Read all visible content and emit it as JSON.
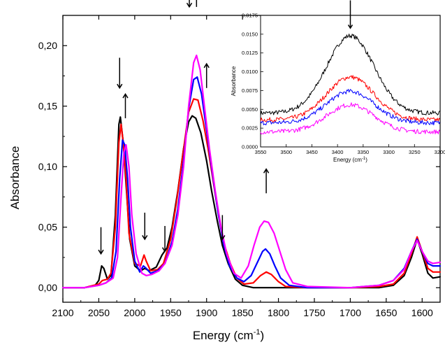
{
  "chart_data": [
    {
      "type": "line",
      "xlabel": "Energy (cm",
      "xlabel_sup": "-1",
      "xlabel_close": ")",
      "ylabel": "Absorbance",
      "xlim": [
        2100,
        1575
      ],
      "ylim": [
        -0.012,
        0.225
      ],
      "x_reversed": true,
      "xticks": [
        2100,
        2050,
        2000,
        1950,
        1900,
        1850,
        1800,
        1750,
        1700,
        1650,
        1600
      ],
      "yticks": [
        0.0,
        0.05,
        0.1,
        0.15,
        0.2
      ],
      "ytick_labels": [
        "0,00",
        "0,05",
        "0,10",
        "0,15",
        "0,20"
      ],
      "grid": false,
      "series": [
        {
          "color": "#000000",
          "points": [
            [
              2100,
              0
            ],
            [
              2070,
              0
            ],
            [
              2055,
              0.002
            ],
            [
              2050,
              0.006
            ],
            [
              2046,
              0.018
            ],
            [
              2043,
              0.016
            ],
            [
              2038,
              0.007
            ],
            [
              2033,
              0.01
            ],
            [
              2027,
              0.06
            ],
            [
              2022,
              0.135
            ],
            [
              2020,
              0.141
            ],
            [
              2016,
              0.12
            ],
            [
              2012,
              0.085
            ],
            [
              2007,
              0.04
            ],
            [
              2000,
              0.018
            ],
            [
              1992,
              0.014
            ],
            [
              1986,
              0.016
            ],
            [
              1980,
              0.014
            ],
            [
              1970,
              0.017
            ],
            [
              1962,
              0.027
            ],
            [
              1955,
              0.033
            ],
            [
              1948,
              0.05
            ],
            [
              1940,
              0.08
            ],
            [
              1932,
              0.115
            ],
            [
              1925,
              0.137
            ],
            [
              1920,
              0.142
            ],
            [
              1915,
              0.14
            ],
            [
              1908,
              0.128
            ],
            [
              1900,
              0.105
            ],
            [
              1893,
              0.08
            ],
            [
              1885,
              0.055
            ],
            [
              1878,
              0.035
            ],
            [
              1870,
              0.02
            ],
            [
              1860,
              0.007
            ],
            [
              1850,
              0.002
            ],
            [
              1835,
              0
            ],
            [
              1800,
              0
            ],
            [
              1700,
              0
            ],
            [
              1660,
              0
            ],
            [
              1640,
              0.002
            ],
            [
              1625,
              0.01
            ],
            [
              1615,
              0.025
            ],
            [
              1607,
              0.04
            ],
            [
              1600,
              0.028
            ],
            [
              1592,
              0.012
            ],
            [
              1585,
              0.008
            ],
            [
              1575,
              0.009
            ]
          ]
        },
        {
          "color": "#ff0000",
          "points": [
            [
              2100,
              0
            ],
            [
              2070,
              0
            ],
            [
              2050,
              0.003
            ],
            [
              2045,
              0.006
            ],
            [
              2038,
              0.007
            ],
            [
              2033,
              0.012
            ],
            [
              2027,
              0.05
            ],
            [
              2022,
              0.12
            ],
            [
              2019,
              0.135
            ],
            [
              2016,
              0.12
            ],
            [
              2012,
              0.09
            ],
            [
              2008,
              0.045
            ],
            [
              2000,
              0.02
            ],
            [
              1992,
              0.018
            ],
            [
              1987,
              0.027
            ],
            [
              1984,
              0.022
            ],
            [
              1978,
              0.014
            ],
            [
              1968,
              0.015
            ],
            [
              1960,
              0.02
            ],
            [
              1950,
              0.04
            ],
            [
              1942,
              0.07
            ],
            [
              1933,
              0.11
            ],
            [
              1925,
              0.145
            ],
            [
              1918,
              0.156
            ],
            [
              1912,
              0.155
            ],
            [
              1905,
              0.138
            ],
            [
              1898,
              0.115
            ],
            [
              1890,
              0.085
            ],
            [
              1882,
              0.055
            ],
            [
              1875,
              0.035
            ],
            [
              1867,
              0.02
            ],
            [
              1858,
              0.008
            ],
            [
              1848,
              0.003
            ],
            [
              1835,
              0.004
            ],
            [
              1825,
              0.01
            ],
            [
              1817,
              0.013
            ],
            [
              1810,
              0.011
            ],
            [
              1800,
              0.005
            ],
            [
              1790,
              0.001
            ],
            [
              1760,
              0
            ],
            [
              1700,
              0
            ],
            [
              1660,
              0.001
            ],
            [
              1640,
              0.003
            ],
            [
              1625,
              0.012
            ],
            [
              1615,
              0.028
            ],
            [
              1607,
              0.042
            ],
            [
              1600,
              0.03
            ],
            [
              1592,
              0.016
            ],
            [
              1585,
              0.013
            ],
            [
              1575,
              0.013
            ]
          ]
        },
        {
          "color": "#0000ff",
          "points": [
            [
              2100,
              0
            ],
            [
              2070,
              0
            ],
            [
              2050,
              0.002
            ],
            [
              2040,
              0.004
            ],
            [
              2032,
              0.008
            ],
            [
              2026,
              0.03
            ],
            [
              2021,
              0.09
            ],
            [
              2017,
              0.122
            ],
            [
              2014,
              0.118
            ],
            [
              2010,
              0.09
            ],
            [
              2006,
              0.05
            ],
            [
              2000,
              0.022
            ],
            [
              1993,
              0.013
            ],
            [
              1988,
              0.018
            ],
            [
              1984,
              0.016
            ],
            [
              1978,
              0.012
            ],
            [
              1968,
              0.014
            ],
            [
              1958,
              0.02
            ],
            [
              1948,
              0.038
            ],
            [
              1940,
              0.065
            ],
            [
              1932,
              0.105
            ],
            [
              1925,
              0.148
            ],
            [
              1918,
              0.172
            ],
            [
              1913,
              0.174
            ],
            [
              1907,
              0.16
            ],
            [
              1900,
              0.13
            ],
            [
              1892,
              0.095
            ],
            [
              1884,
              0.062
            ],
            [
              1876,
              0.035
            ],
            [
              1868,
              0.018
            ],
            [
              1858,
              0.008
            ],
            [
              1848,
              0.005
            ],
            [
              1838,
              0.01
            ],
            [
              1830,
              0.02
            ],
            [
              1822,
              0.03
            ],
            [
              1818,
              0.032
            ],
            [
              1812,
              0.028
            ],
            [
              1805,
              0.018
            ],
            [
              1797,
              0.008
            ],
            [
              1785,
              0.002
            ],
            [
              1760,
              0
            ],
            [
              1700,
              0
            ],
            [
              1660,
              0.002
            ],
            [
              1640,
              0.006
            ],
            [
              1625,
              0.016
            ],
            [
              1615,
              0.03
            ],
            [
              1607,
              0.04
            ],
            [
              1600,
              0.03
            ],
            [
              1592,
              0.02
            ],
            [
              1585,
              0.018
            ],
            [
              1575,
              0.018
            ]
          ]
        },
        {
          "color": "#ff00ff",
          "points": [
            [
              2100,
              0
            ],
            [
              2070,
              0
            ],
            [
              2050,
              0.002
            ],
            [
              2040,
              0.004
            ],
            [
              2030,
              0.008
            ],
            [
              2024,
              0.025
            ],
            [
              2019,
              0.075
            ],
            [
              2015,
              0.112
            ],
            [
              2012,
              0.118
            ],
            [
              2008,
              0.1
            ],
            [
              2004,
              0.06
            ],
            [
              1998,
              0.028
            ],
            [
              1990,
              0.012
            ],
            [
              1984,
              0.01
            ],
            [
              1976,
              0.011
            ],
            [
              1966,
              0.014
            ],
            [
              1958,
              0.02
            ],
            [
              1948,
              0.035
            ],
            [
              1940,
              0.06
            ],
            [
              1932,
              0.1
            ],
            [
              1925,
              0.15
            ],
            [
              1918,
              0.186
            ],
            [
              1914,
              0.192
            ],
            [
              1909,
              0.18
            ],
            [
              1903,
              0.15
            ],
            [
              1896,
              0.115
            ],
            [
              1888,
              0.08
            ],
            [
              1880,
              0.05
            ],
            [
              1872,
              0.028
            ],
            [
              1862,
              0.012
            ],
            [
              1852,
              0.008
            ],
            [
              1842,
              0.018
            ],
            [
              1834,
              0.035
            ],
            [
              1826,
              0.05
            ],
            [
              1820,
              0.055
            ],
            [
              1814,
              0.054
            ],
            [
              1806,
              0.045
            ],
            [
              1798,
              0.03
            ],
            [
              1790,
              0.015
            ],
            [
              1780,
              0.004
            ],
            [
              1760,
              0.001
            ],
            [
              1700,
              0
            ],
            [
              1660,
              0.002
            ],
            [
              1640,
              0.006
            ],
            [
              1625,
              0.015
            ],
            [
              1615,
              0.03
            ],
            [
              1607,
              0.039
            ],
            [
              1600,
              0.03
            ],
            [
              1592,
              0.022
            ],
            [
              1585,
              0.02
            ],
            [
              1575,
              0.021
            ]
          ]
        }
      ],
      "annotations": [
        {
          "direction": "down",
          "x": 2047,
          "y_from": 0.05,
          "y_to": 0.028
        },
        {
          "direction": "down",
          "x": 2021,
          "y_from": 0.19,
          "y_to": 0.165
        },
        {
          "direction": "up",
          "x": 2013,
          "y_from": 0.14,
          "y_to": 0.16
        },
        {
          "direction": "down",
          "x": 1986,
          "y_from": 0.062,
          "y_to": 0.04
        },
        {
          "direction": "down",
          "x": 1958,
          "y_from": 0.051,
          "y_to": 0.03
        },
        {
          "direction": "down",
          "x": 1924,
          "y_from": 0.255,
          "y_to": 0.232
        },
        {
          "direction": "up",
          "x": 1914,
          "y_from": 0.232,
          "y_to": 0.257
        },
        {
          "direction": "up",
          "x": 1900,
          "y_from": 0.165,
          "y_to": 0.185
        },
        {
          "direction": "down",
          "x": 1878,
          "y_from": 0.06,
          "y_to": 0.04
        },
        {
          "direction": "up",
          "x": 1817,
          "y_from": 0.078,
          "y_to": 0.098
        }
      ]
    },
    {
      "type": "line",
      "inset": true,
      "xlabel": "Energy (cm",
      "xlabel_sup": "-1",
      "xlabel_close": ")",
      "ylabel": "Absorbance",
      "xlim": [
        3550,
        3200
      ],
      "ylim": [
        0,
        0.0175
      ],
      "x_reversed": true,
      "xticks": [
        3550,
        3500,
        3450,
        3400,
        3350,
        3300,
        3250,
        3200
      ],
      "yticks": [
        0.0,
        0.0025,
        0.005,
        0.0075,
        0.01,
        0.0125,
        0.015,
        0.0175
      ],
      "ytick_labels": [
        "0.0000",
        "0.0025",
        "0.0050",
        "0.0075",
        "0.0100",
        "0.0125",
        "0.0150",
        "0.0175"
      ],
      "series": [
        {
          "color": "#000000",
          "base": 0.0045,
          "peak": 0.0148,
          "noise": 0.0003
        },
        {
          "color": "#ff0000",
          "base": 0.0036,
          "peak": 0.0093,
          "noise": 0.0003
        },
        {
          "color": "#0000ff",
          "base": 0.0032,
          "peak": 0.0074,
          "noise": 0.0003
        },
        {
          "color": "#ff00ff",
          "base": 0.002,
          "peak": 0.0056,
          "noise": 0.0003
        }
      ],
      "annotations": [
        {
          "direction": "down",
          "x": 3375,
          "y_from": 0.0195,
          "y_to": 0.0158
        }
      ]
    }
  ]
}
